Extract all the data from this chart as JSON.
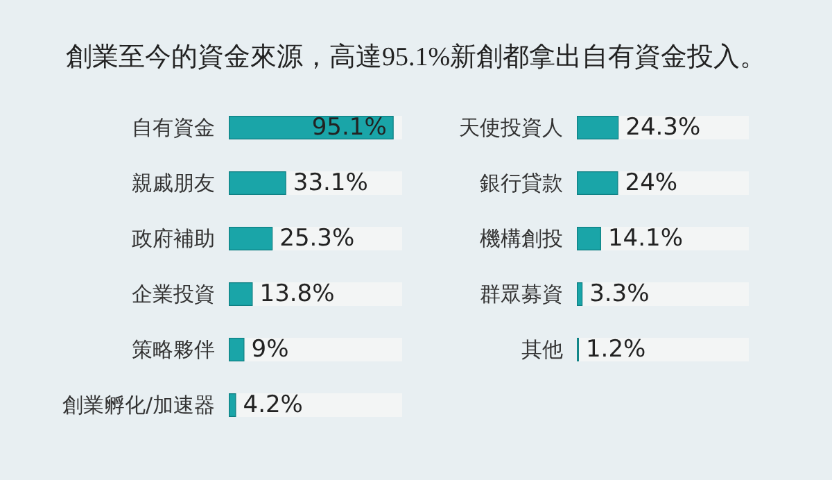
{
  "chart_data": [
    {
      "type": "bar",
      "orientation": "horizontal",
      "title": "創業至今的資金來源，高達95.1%新創都拿出自有資金投入。",
      "categories": [
        "自有資金",
        "親戚朋友",
        "政府補助",
        "企業投資",
        "策略夥伴",
        "創業孵化/加速器"
      ],
      "values": [
        95.1,
        33.1,
        25.3,
        13.8,
        9,
        4.2
      ],
      "value_labels": [
        "95.1%",
        "33.1%",
        "25.3%",
        "13.8%",
        "9%",
        "4.2%"
      ],
      "xlim": [
        0,
        100
      ],
      "color": "#1aa5a8"
    },
    {
      "type": "bar",
      "orientation": "horizontal",
      "categories": [
        "天使投資人",
        "銀行貸款",
        "機構創投",
        "群眾募資",
        "其他"
      ],
      "values": [
        24.3,
        24,
        14.1,
        3.3,
        1.2
      ],
      "value_labels": [
        "24.3%",
        "24%",
        "14.1%",
        "3.3%",
        "1.2%"
      ],
      "xlim": [
        0,
        100
      ],
      "color": "#1aa5a8"
    }
  ]
}
